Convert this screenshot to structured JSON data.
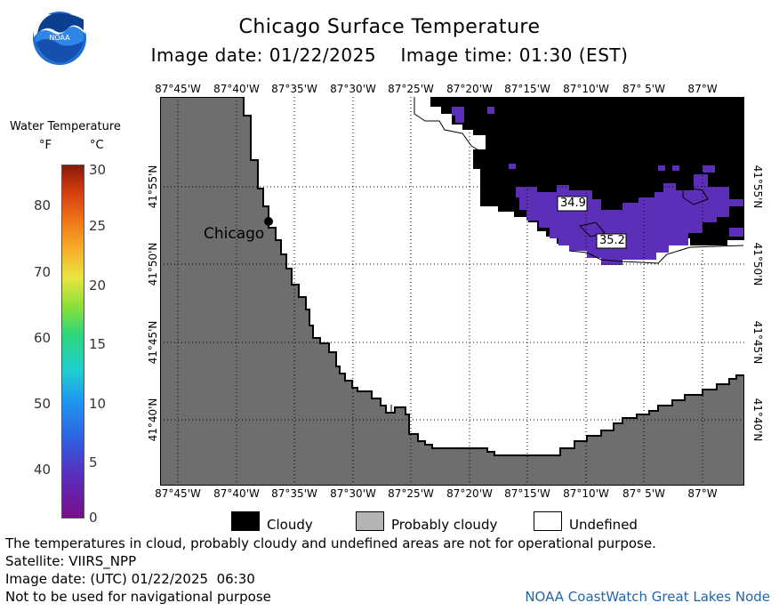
{
  "header": {
    "title": "Chicago Surface Temperature",
    "image_date_label": "Image date: 01/22/2025",
    "image_time_label": "Image time: 01:30 (EST)",
    "logo_text": "NOAA"
  },
  "legend": {
    "title": "Water Temperature",
    "unit_f": "°F",
    "unit_c": "°C",
    "f_ticks": [
      "80",
      "70",
      "60",
      "50",
      "40"
    ],
    "c_ticks": [
      "30",
      "25",
      "20",
      "15",
      "10",
      "5",
      "0"
    ]
  },
  "map": {
    "lon_labels": [
      "87°45'W",
      "87°40'W",
      "87°35'W",
      "87°30'W",
      "87°25'W",
      "87°20'W",
      "87°15'W",
      "87°10'W",
      "87° 5'W",
      "87°W"
    ],
    "lat_labels": [
      "41°55'N",
      "41°50'N",
      "41°45'N",
      "41°40'N"
    ],
    "city_label": "Chicago",
    "temp_labels": [
      "34.9",
      "35.2"
    ],
    "colors": {
      "land": "#6e6e6e",
      "cloud": "#000000",
      "water_cold": "#5c2fb8",
      "undefined": "#ffffff"
    }
  },
  "key": {
    "cloudy": "Cloudy",
    "probably_cloudy": "Probably cloudy",
    "undefined": "Undefined"
  },
  "footer": {
    "disclaimer": "The temperatures in cloud, probably cloudy and undefined areas are not for operational purpose.",
    "satellite": "Satellite: VIIRS_NPP",
    "utc_date": "Image date: (UTC) 01/22/2025  06:30",
    "nav_warning": "Not to be used for navigational purpose",
    "credit": "NOAA CoastWatch Great Lakes Node"
  }
}
